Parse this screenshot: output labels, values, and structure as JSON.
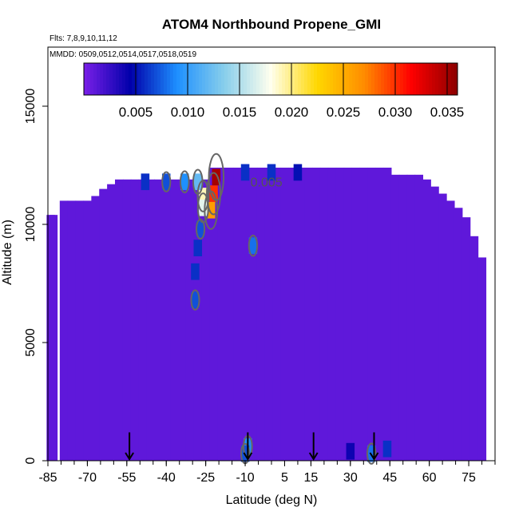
{
  "chart_data": {
    "type": "heatmap",
    "title": "ATOM4 Northbound Propene_GMI",
    "annotations": {
      "flights": "Flts: 7,8,9,10,11,12",
      "dates": "MMDD: 0509,0512,0514,0517,0518,0519"
    },
    "xlabel": "Latitude (deg N)",
    "ylabel": "Altitude (m)",
    "xlim": [
      -85,
      85
    ],
    "ylim": [
      0,
      17500
    ],
    "x_ticks": [
      -85,
      -70,
      -55,
      -40,
      -25,
      -10,
      5,
      15,
      30,
      45,
      60,
      75
    ],
    "y_ticks": [
      0,
      5000,
      10000,
      15000
    ],
    "colorbar": {
      "min": 0.0,
      "max": 0.036,
      "ticks": [
        0.005,
        0.01,
        0.015,
        0.02,
        0.025,
        0.03,
        0.035
      ],
      "tick_labels": [
        "0.005",
        "0.010",
        "0.015",
        "0.020",
        "0.025",
        "0.030",
        "0.035"
      ],
      "colors": [
        "#7a1fe8",
        "#0000aa",
        "#1e90ff",
        "#87ceeb",
        "#ffffee",
        "#ffd700",
        "#ff8c00",
        "#ff0000",
        "#8b0000"
      ]
    },
    "contour_label": "0.005",
    "background_value": 0.001,
    "grid": false,
    "legend": "none",
    "profile_markers_lat": [
      -54,
      -9,
      16,
      39
    ],
    "field_envelope": [
      [
        -84,
        0,
        10400
      ],
      [
        -83,
        0,
        10400
      ],
      [
        -79,
        0,
        11000
      ],
      [
        -76,
        0,
        11000
      ],
      [
        -73,
        0,
        11000
      ],
      [
        -70,
        0,
        11000
      ],
      [
        -67,
        0,
        11200
      ],
      [
        -64,
        0,
        11500
      ],
      [
        -61,
        0,
        11700
      ],
      [
        -58,
        0,
        11900
      ],
      [
        -55,
        0,
        11900
      ],
      [
        -52,
        0,
        11900
      ],
      [
        -49,
        0,
        11900
      ],
      [
        -46,
        0,
        11900
      ],
      [
        -43,
        0,
        11900
      ],
      [
        -40,
        0,
        11900
      ],
      [
        -37,
        0,
        11900
      ],
      [
        -34,
        0,
        11900
      ],
      [
        -31,
        0,
        11900
      ],
      [
        -28,
        0,
        11900
      ],
      [
        -25,
        0,
        11900
      ],
      [
        -22,
        0,
        12400
      ],
      [
        -19,
        0,
        12400
      ],
      [
        -16,
        0,
        12400
      ],
      [
        -13,
        0,
        12400
      ],
      [
        -10,
        0,
        12400
      ],
      [
        -7,
        0,
        12400
      ],
      [
        -4,
        0,
        12400
      ],
      [
        -1,
        0,
        12400
      ],
      [
        2,
        0,
        12400
      ],
      [
        5,
        0,
        12400
      ],
      [
        8,
        0,
        12400
      ],
      [
        11,
        0,
        12400
      ],
      [
        14,
        0,
        12400
      ],
      [
        17,
        0,
        12400
      ],
      [
        20,
        0,
        12400
      ],
      [
        23,
        0,
        12400
      ],
      [
        26,
        0,
        12400
      ],
      [
        29,
        0,
        12400
      ],
      [
        32,
        0,
        12400
      ],
      [
        35,
        0,
        12400
      ],
      [
        38,
        0,
        12400
      ],
      [
        41,
        0,
        12400
      ],
      [
        44,
        0,
        12400
      ],
      [
        47,
        0,
        12100
      ],
      [
        50,
        0,
        12100
      ],
      [
        53,
        0,
        12100
      ],
      [
        56,
        0,
        12100
      ],
      [
        59,
        0,
        11900
      ],
      [
        62,
        0,
        11600
      ],
      [
        65,
        0,
        11300
      ],
      [
        68,
        0,
        11000
      ],
      [
        71,
        0,
        10700
      ],
      [
        74,
        0,
        10300
      ],
      [
        77,
        0,
        9500
      ],
      [
        80,
        0,
        8600
      ]
    ],
    "hotspots": [
      {
        "lat": -22,
        "alt": 11300,
        "value": 0.03
      },
      {
        "lat": -23,
        "alt": 10600,
        "value": 0.026
      },
      {
        "lat": -21,
        "alt": 12000,
        "value": 0.035
      },
      {
        "lat": -26,
        "alt": 11200,
        "value": 0.019
      },
      {
        "lat": -26,
        "alt": 10700,
        "value": 0.017
      },
      {
        "lat": -28,
        "alt": 11800,
        "value": 0.012
      },
      {
        "lat": -33,
        "alt": 11800,
        "value": 0.009
      },
      {
        "lat": -40,
        "alt": 11800,
        "value": 0.007
      },
      {
        "lat": -48,
        "alt": 11800,
        "value": 0.006
      },
      {
        "lat": -10,
        "alt": 12200,
        "value": 0.006
      },
      {
        "lat": 0,
        "alt": 12200,
        "value": 0.006
      },
      {
        "lat": 10,
        "alt": 12200,
        "value": 0.005
      },
      {
        "lat": -27,
        "alt": 9800,
        "value": 0.007
      },
      {
        "lat": -28,
        "alt": 9000,
        "value": 0.006
      },
      {
        "lat": -29,
        "alt": 8000,
        "value": 0.006
      },
      {
        "lat": -29,
        "alt": 6800,
        "value": 0.007
      },
      {
        "lat": -7,
        "alt": 9100,
        "value": 0.008
      },
      {
        "lat": -9,
        "alt": 600,
        "value": 0.009
      },
      {
        "lat": -10,
        "alt": 300,
        "value": 0.007
      },
      {
        "lat": 38,
        "alt": 300,
        "value": 0.008
      },
      {
        "lat": 44,
        "alt": 500,
        "value": 0.006
      },
      {
        "lat": 30,
        "alt": 400,
        "value": 0.004
      }
    ]
  }
}
